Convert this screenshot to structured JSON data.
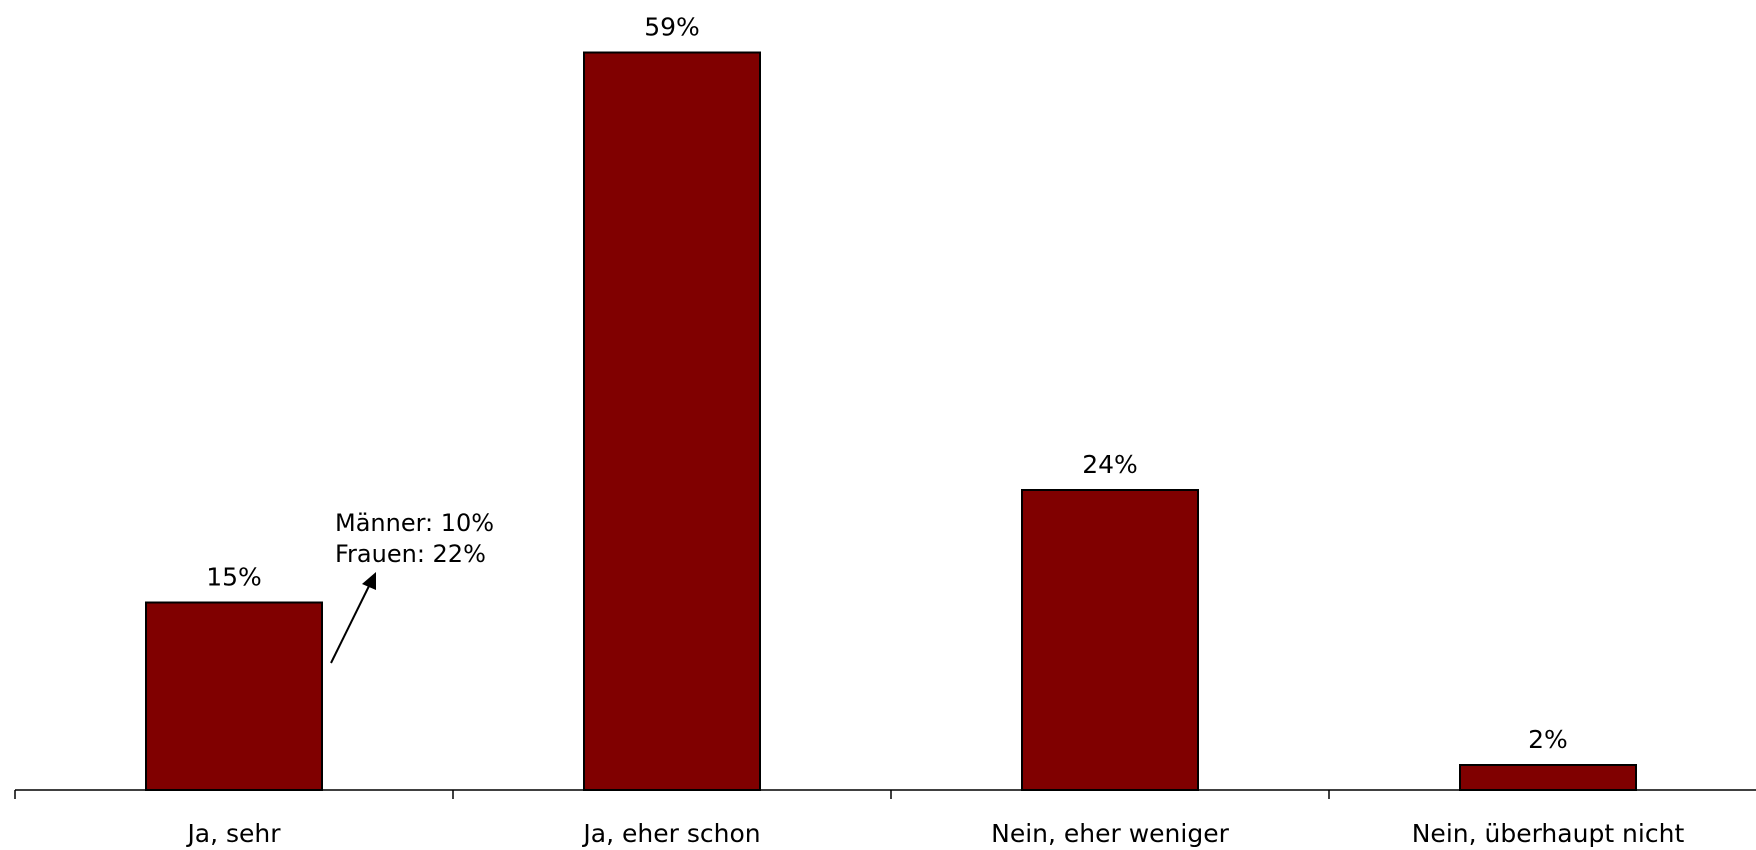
{
  "chart_data": {
    "type": "bar",
    "categories": [
      "Ja, sehr",
      "Ja, eher schon",
      "Nein, eher weniger",
      "Nein, überhaupt nicht"
    ],
    "values": [
      15,
      59,
      24,
      2
    ],
    "value_labels": [
      "15%",
      "59%",
      "24%",
      "2%"
    ],
    "unit": "%",
    "ylim": [
      0,
      60
    ],
    "grid": false,
    "legend": "none",
    "bar_color": "#800000",
    "annotation": {
      "category": "Ja, sehr",
      "lines": [
        "Männer: 10%",
        "Frauen: 22%"
      ]
    }
  }
}
